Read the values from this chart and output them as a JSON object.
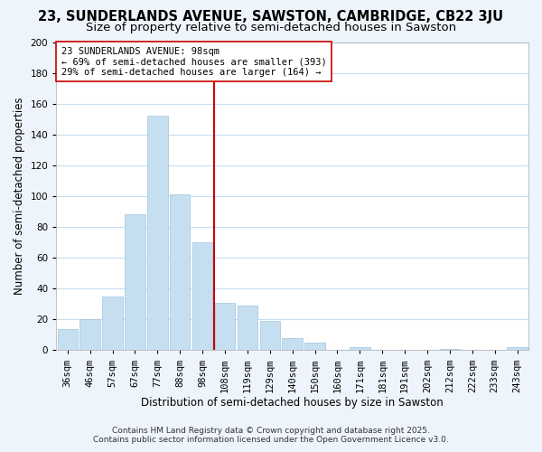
{
  "title": "23, SUNDERLANDS AVENUE, SAWSTON, CAMBRIDGE, CB22 3JU",
  "subtitle": "Size of property relative to semi-detached houses in Sawston",
  "xlabel": "Distribution of semi-detached houses by size in Sawston",
  "ylabel": "Number of semi-detached properties",
  "categories": [
    "36sqm",
    "46sqm",
    "57sqm",
    "67sqm",
    "77sqm",
    "88sqm",
    "98sqm",
    "108sqm",
    "119sqm",
    "129sqm",
    "140sqm",
    "150sqm",
    "160sqm",
    "171sqm",
    "181sqm",
    "191sqm",
    "202sqm",
    "212sqm",
    "222sqm",
    "233sqm",
    "243sqm"
  ],
  "values": [
    14,
    20,
    35,
    88,
    152,
    101,
    70,
    31,
    29,
    19,
    8,
    5,
    0,
    2,
    0,
    0,
    0,
    1,
    0,
    0,
    2
  ],
  "bar_color": "#c6dff0",
  "bar_edge_color": "#a0c4e0",
  "vline_color": "#cc0000",
  "ylim": [
    0,
    200
  ],
  "yticks": [
    0,
    20,
    40,
    60,
    80,
    100,
    120,
    140,
    160,
    180,
    200
  ],
  "annotation_line1": "23 SUNDERLANDS AVENUE: 98sqm",
  "annotation_line2": "← 69% of semi-detached houses are smaller (393)",
  "annotation_line3": "29% of semi-detached houses are larger (164) →",
  "footnote1": "Contains HM Land Registry data © Crown copyright and database right 2025.",
  "footnote2": "Contains public sector information licensed under the Open Government Licence v3.0.",
  "background_color": "#eef4fb",
  "plot_bg_color": "#ffffff",
  "grid_color": "#c8ddf0",
  "title_fontsize": 10.5,
  "subtitle_fontsize": 9.5,
  "axis_label_fontsize": 8.5,
  "tick_fontsize": 7.5,
  "annotation_fontsize": 7.5,
  "footnote_fontsize": 6.5
}
